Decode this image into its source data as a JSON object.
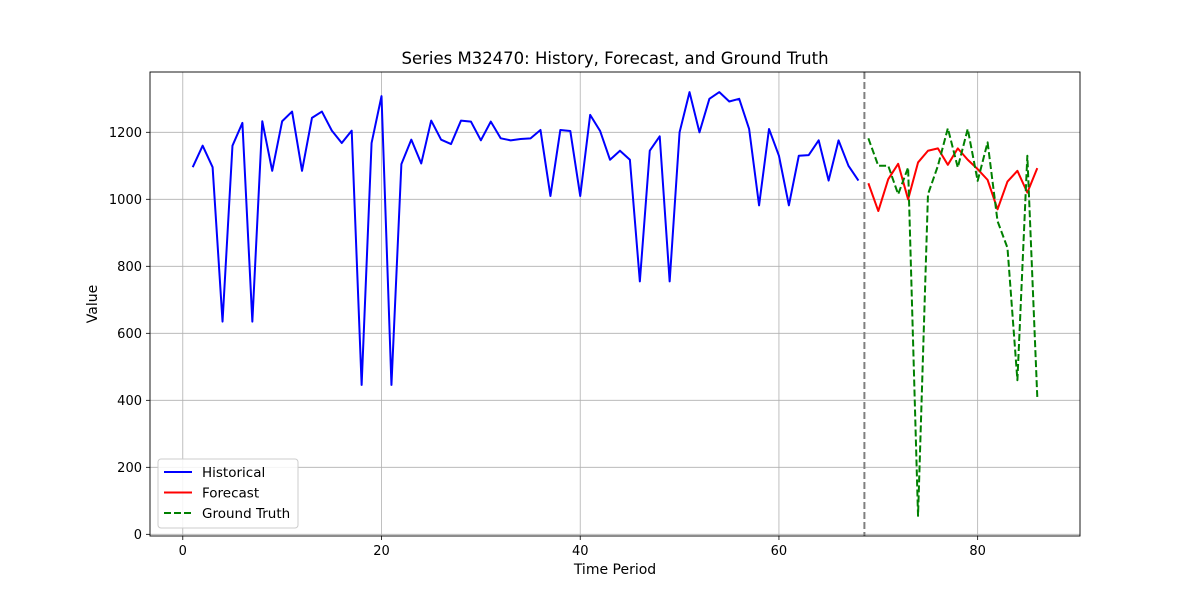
{
  "chart_data": {
    "type": "line",
    "title": "Series M32470: History, Forecast, and Ground Truth",
    "xlabel": "Time Period",
    "ylabel": "Value",
    "xlim": [
      -3.3,
      90.3
    ],
    "ylim": [
      -5,
      1380
    ],
    "xticks": [
      0,
      20,
      40,
      60,
      80
    ],
    "yticks": [
      0,
      200,
      400,
      600,
      800,
      1000,
      1200
    ],
    "grid": true,
    "legend_position": "lower-left",
    "forecast_start_marker": 68.6,
    "series": [
      {
        "name": "Historical",
        "color": "#0000ff",
        "style": "solid",
        "x": [
          1,
          2,
          3,
          4,
          5,
          6,
          7,
          8,
          9,
          10,
          11,
          12,
          13,
          14,
          15,
          16,
          17,
          18,
          19,
          20,
          21,
          22,
          23,
          24,
          25,
          26,
          27,
          28,
          29,
          30,
          31,
          32,
          33,
          34,
          35,
          36,
          37,
          38,
          39,
          40,
          41,
          42,
          43,
          44,
          45,
          46,
          47,
          48,
          49,
          50,
          51,
          52,
          53,
          54,
          55,
          56,
          57,
          58,
          59,
          60,
          61,
          62,
          63,
          64,
          65,
          66,
          67,
          68
        ],
        "y": [
          1096,
          1160,
          1096,
          635,
          1160,
          1228,
          635,
          1233,
          1085,
          1233,
          1262,
          1085,
          1243,
          1262,
          1205,
          1168,
          1205,
          446,
          1168,
          1308,
          446,
          1105,
          1178,
          1107,
          1235,
          1178,
          1165,
          1235,
          1232,
          1176,
          1232,
          1182,
          1176,
          1180,
          1182,
          1207,
          1010,
          1207,
          1204,
          1010,
          1252,
          1204,
          1118,
          1145,
          1118,
          755,
          1145,
          1188,
          755,
          1200,
          1320,
          1200,
          1300,
          1320,
          1292,
          1300,
          1210,
          982,
          1210,
          1130,
          982,
          1130,
          1132,
          1176,
          1056,
          1176,
          1100,
          1056
        ]
      },
      {
        "name": "Forecast",
        "color": "#ff0000",
        "style": "solid",
        "x": [
          69,
          70,
          71,
          72,
          73,
          74,
          75,
          76,
          77,
          78,
          79,
          80,
          81,
          82,
          83,
          84,
          85,
          86
        ],
        "y": [
          1048,
          965,
          1060,
          1106,
          1000,
          1110,
          1145,
          1152,
          1103,
          1152,
          1118,
          1090,
          1058,
          970,
          1053,
          1085,
          1020,
          1093
        ]
      },
      {
        "name": "Ground Truth",
        "color": "#008000",
        "style": "dashed",
        "x": [
          69,
          70,
          71,
          72,
          73,
          74,
          75,
          76,
          77,
          78,
          79,
          80,
          81,
          82,
          83,
          84,
          85,
          86
        ],
        "y": [
          1182,
          1100,
          1100,
          1015,
          1095,
          55,
          1015,
          1100,
          1212,
          1095,
          1210,
          1055,
          1170,
          935,
          855,
          460,
          1130,
          410
        ]
      }
    ]
  }
}
